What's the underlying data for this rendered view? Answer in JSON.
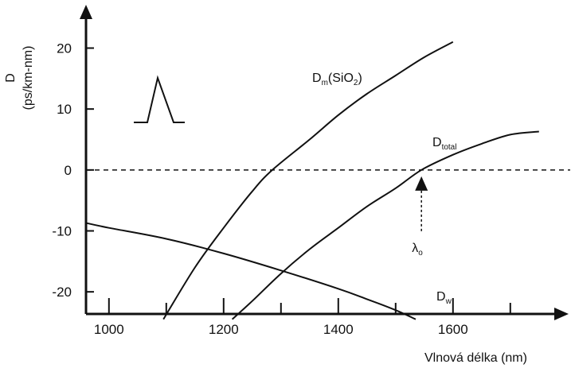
{
  "chart_data": {
    "type": "line",
    "title": "",
    "xlabel": "Vlnová délka (nm)",
    "ylabel": "D",
    "ylabel_unit": "(ps/km-nm)",
    "xlim": [
      960,
      1760
    ],
    "ylim": [
      -24.5,
      27
    ],
    "x_ticks": [
      1000,
      1200,
      1400,
      1600
    ],
    "x_minor_ticks": [
      1100,
      1300,
      1500,
      1700
    ],
    "y_ticks": [
      20,
      10,
      0,
      -10,
      -20
    ],
    "grid": false,
    "zero_line": "dashed",
    "series": [
      {
        "name": "Dm(SiO2)",
        "label_main": "D",
        "label_sub": "m",
        "label_suffix": "(SiO",
        "label_suffix_sub": "2",
        "label_end": ")",
        "points": [
          [
            1095,
            -24.5
          ],
          [
            1150,
            -16
          ],
          [
            1200,
            -9.5
          ],
          [
            1250,
            -3.5
          ],
          [
            1285,
            0
          ],
          [
            1350,
            5
          ],
          [
            1400,
            9
          ],
          [
            1450,
            12.5
          ],
          [
            1500,
            15.5
          ],
          [
            1550,
            18.5
          ],
          [
            1600,
            21
          ]
        ]
      },
      {
        "name": "Dtotal",
        "label_main": "D",
        "label_sub": "total",
        "points": [
          [
            1215,
            -24.5
          ],
          [
            1250,
            -21.5
          ],
          [
            1300,
            -17
          ],
          [
            1350,
            -13
          ],
          [
            1400,
            -9.5
          ],
          [
            1450,
            -6
          ],
          [
            1500,
            -3
          ],
          [
            1545,
            0
          ],
          [
            1600,
            2.5
          ],
          [
            1650,
            4.3
          ],
          [
            1700,
            5.8
          ],
          [
            1750,
            6.3
          ]
        ]
      },
      {
        "name": "Dw",
        "label_main": "D",
        "label_sub": "w",
        "points": [
          [
            960,
            -8.7
          ],
          [
            1000,
            -9.5
          ],
          [
            1100,
            -11.3
          ],
          [
            1200,
            -13.7
          ],
          [
            1300,
            -16.5
          ],
          [
            1400,
            -19.5
          ],
          [
            1450,
            -21.2
          ],
          [
            1500,
            -23
          ],
          [
            1535,
            -24.5
          ]
        ]
      }
    ],
    "annotation": {
      "label": "λ",
      "label_sub": "o",
      "x": 1545,
      "y": 0
    }
  }
}
